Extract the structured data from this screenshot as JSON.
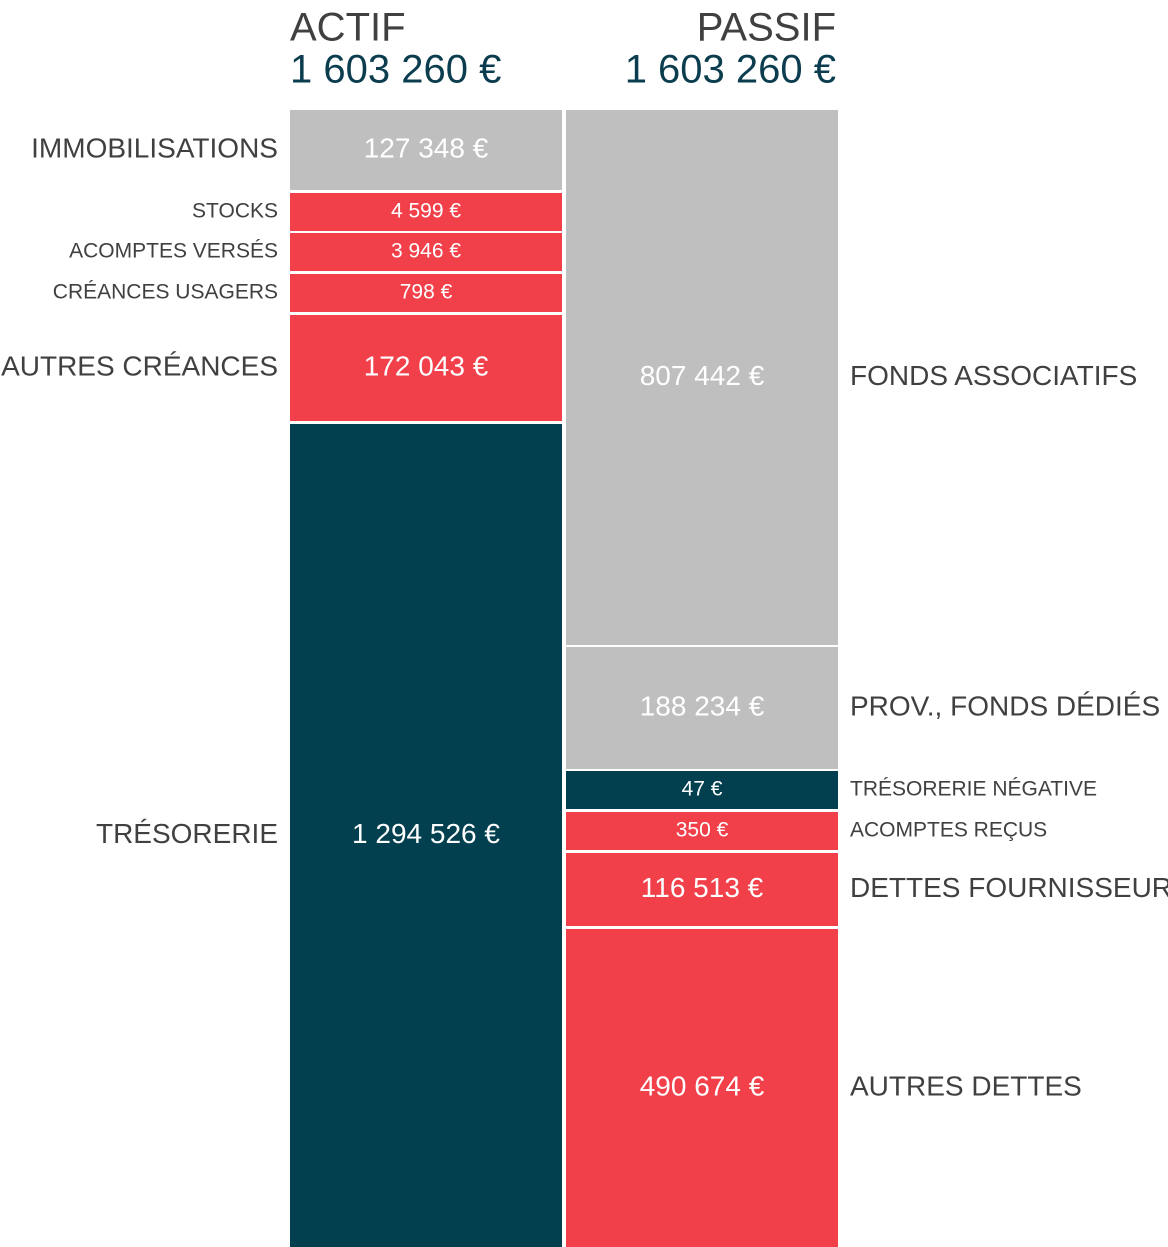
{
  "actif": {
    "title": "ACTIF",
    "total": "1 603 260 €",
    "items": [
      {
        "label": "IMMOBILISATIONS",
        "amount": "127 348 €",
        "color": "#bfbfbf"
      },
      {
        "label": "STOCKS",
        "amount": "4 599 €",
        "color": "#f2404b"
      },
      {
        "label": "ACOMPTES VERSÉS",
        "amount": "3 946 €",
        "color": "#f2404b"
      },
      {
        "label": "CRÉANCES USAGERS",
        "amount": "798 €",
        "color": "#f2404b"
      },
      {
        "label": "AUTRES CRÉANCES",
        "amount": "172 043 €",
        "color": "#f2404b"
      },
      {
        "label": "TRÉSORERIE",
        "amount": "1 294 526 €",
        "color": "#02404f"
      }
    ]
  },
  "passif": {
    "title": "PASSIF",
    "total": "1 603 260 €",
    "items": [
      {
        "label": "FONDS ASSOCIATIFS",
        "amount": "807 442 €",
        "color": "#bfbfbf"
      },
      {
        "label": "PROV., FONDS DÉDIÉS",
        "amount": "188 234 €",
        "color": "#bfbfbf"
      },
      {
        "label": "TRÉSORERIE NÉGATIVE",
        "amount": "47 €",
        "color": "#02404f"
      },
      {
        "label": "ACOMPTES REÇUS",
        "amount": "350 €",
        "color": "#f2404b"
      },
      {
        "label": "DETTES FOURNISSEURS",
        "amount": "116 513 €",
        "color": "#f2404b"
      },
      {
        "label": "AUTRES DETTES",
        "amount": "490 674 €",
        "color": "#f2404b"
      }
    ]
  }
}
